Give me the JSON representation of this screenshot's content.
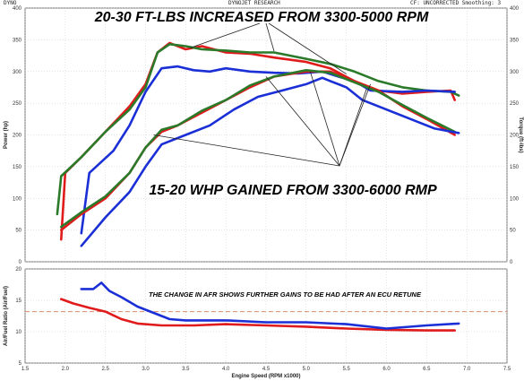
{
  "header": {
    "left": "DYNO",
    "center": "DYNOJET RESEARCH",
    "right": "CF: UNCORRECTED  Smoothing: 3"
  },
  "chart_data": [
    {
      "type": "line",
      "xlabel": "Engine Speed (RPM x1000)",
      "ylabel_left": "Power (hp)",
      "ylabel_right": "Torque (ft-lbs)",
      "xlim": [
        1.5,
        7.5
      ],
      "ylim": [
        0,
        400
      ],
      "x_ticks": [
        1.5,
        2.0,
        2.5,
        3.0,
        3.5,
        4.0,
        4.5,
        5.0,
        5.5,
        6.0,
        6.5,
        7.0,
        7.5
      ],
      "y_ticks": [
        0,
        50,
        100,
        150,
        200,
        250,
        300,
        350,
        400
      ],
      "annotations": [
        "20-30 FT-LBS INCREASED FROM 3300-5000 RPM",
        "15-20 WHP GAINED FROM 3300-6000 RMP"
      ],
      "series": [
        {
          "color": "#e01b1b",
          "kind": "torque",
          "x": [
            1.95,
            2.0,
            2.2,
            2.5,
            2.8,
            3.0,
            3.15,
            3.3,
            3.5,
            3.7,
            4.0,
            4.3,
            4.6,
            5.0,
            5.3,
            5.6,
            5.9,
            6.2,
            6.5,
            6.8,
            6.85
          ],
          "y": [
            35,
            140,
            165,
            205,
            245,
            280,
            330,
            345,
            335,
            340,
            330,
            328,
            322,
            315,
            305,
            285,
            270,
            265,
            268,
            270,
            255
          ]
        },
        {
          "color": "#2a7a2a",
          "kind": "torque",
          "x": [
            1.9,
            1.95,
            2.2,
            2.5,
            2.8,
            3.0,
            3.15,
            3.3,
            3.5,
            3.7,
            4.0,
            4.3,
            4.6,
            5.0,
            5.3,
            5.6,
            5.9,
            6.2,
            6.5,
            6.8,
            6.9
          ],
          "y": [
            75,
            135,
            165,
            205,
            240,
            275,
            330,
            343,
            340,
            335,
            333,
            330,
            330,
            320,
            312,
            300,
            285,
            275,
            270,
            268,
            262
          ]
        },
        {
          "color": "#1b2fd6",
          "kind": "torque",
          "x": [
            2.2,
            2.3,
            2.6,
            2.8,
            3.0,
            3.2,
            3.4,
            3.6,
            3.8,
            4.0,
            4.3,
            4.6,
            4.9,
            5.2,
            5.4,
            5.6,
            5.8,
            6.2,
            6.5,
            6.85
          ],
          "y": [
            45,
            140,
            175,
            215,
            268,
            305,
            308,
            302,
            300,
            305,
            300,
            298,
            297,
            300,
            292,
            285,
            270,
            268,
            270,
            268
          ]
        },
        {
          "color": "#e01b1b",
          "kind": "power",
          "x": [
            1.95,
            2.2,
            2.5,
            2.8,
            3.0,
            3.2,
            3.4,
            3.7,
            4.0,
            4.3,
            4.6,
            5.0,
            5.3,
            5.6,
            5.9,
            6.2,
            6.5,
            6.85
          ],
          "y": [
            50,
            75,
            100,
            140,
            180,
            205,
            215,
            235,
            255,
            275,
            292,
            300,
            300,
            285,
            270,
            245,
            225,
            200
          ]
        },
        {
          "color": "#2a7a2a",
          "kind": "power",
          "x": [
            1.95,
            2.2,
            2.5,
            2.8,
            3.0,
            3.2,
            3.4,
            3.7,
            4.0,
            4.3,
            4.6,
            5.0,
            5.3,
            5.6,
            5.9,
            6.2,
            6.5,
            6.85
          ],
          "y": [
            55,
            78,
            103,
            140,
            180,
            208,
            215,
            238,
            255,
            278,
            292,
            302,
            298,
            283,
            268,
            247,
            227,
            205
          ]
        },
        {
          "color": "#1b2fd6",
          "kind": "power",
          "x": [
            2.2,
            2.5,
            2.8,
            3.0,
            3.2,
            3.5,
            3.8,
            4.1,
            4.4,
            4.7,
            5.0,
            5.2,
            5.3,
            5.5,
            5.7,
            6.0,
            6.3,
            6.6,
            6.9
          ],
          "y": [
            25,
            70,
            110,
            150,
            185,
            200,
            215,
            240,
            260,
            270,
            280,
            290,
            285,
            275,
            255,
            240,
            225,
            210,
            203
          ]
        }
      ]
    },
    {
      "type": "line",
      "ylabel": "Air/Fuel Ratio (Air/Fuel)",
      "xlim": [
        1.5,
        7.5
      ],
      "ylim": [
        5,
        20
      ],
      "y_ticks": [
        5,
        10,
        15,
        20
      ],
      "reference_line": 13.2,
      "annotations": [
        "THE CHANGE IN AFR SHOWS FURTHER GAINS TO BE HAD AFTER AN ECU RETUNE"
      ],
      "series": [
        {
          "color": "#e01b1b",
          "x": [
            1.95,
            2.1,
            2.3,
            2.5,
            2.7,
            2.9,
            3.2,
            3.6,
            4.0,
            4.5,
            5.0,
            5.5,
            6.0,
            6.5,
            6.85
          ],
          "y": [
            15.2,
            14.5,
            13.8,
            13.2,
            12.0,
            11.3,
            11.0,
            11.0,
            11.2,
            11.0,
            10.8,
            10.5,
            10.3,
            10.2,
            10.2
          ]
        },
        {
          "color": "#1b2fd6",
          "x": [
            2.2,
            2.35,
            2.45,
            2.55,
            2.7,
            2.9,
            3.1,
            3.3,
            3.5,
            4.0,
            4.5,
            5.0,
            5.5,
            6.0,
            6.5,
            6.9
          ],
          "y": [
            16.8,
            16.8,
            17.8,
            16.5,
            15.5,
            14.0,
            13.0,
            12.0,
            11.8,
            11.8,
            11.5,
            11.5,
            11.2,
            10.5,
            11.0,
            11.3
          ]
        }
      ]
    }
  ]
}
